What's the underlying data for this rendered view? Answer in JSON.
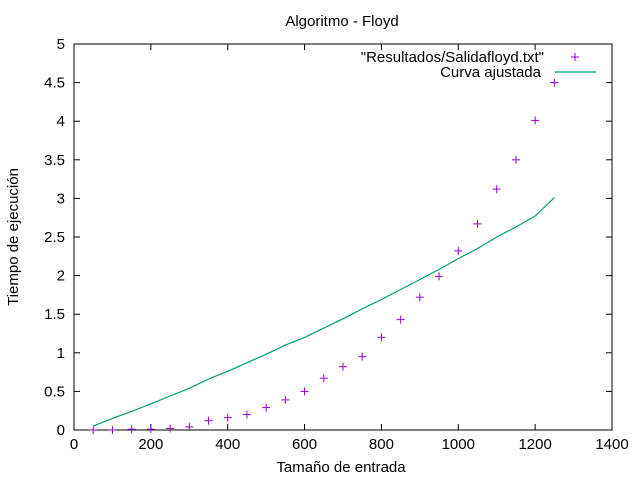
{
  "chart_data": {
    "type": "scatter",
    "title": "Algoritmo - Floyd",
    "xlabel": "Tamaño de entrada",
    "ylabel": "Tiempo de ejecución",
    "xlim": [
      0,
      1400
    ],
    "ylim": [
      0,
      5
    ],
    "x_ticks": [
      0,
      200,
      400,
      600,
      800,
      1000,
      1200,
      1400
    ],
    "y_ticks": [
      0,
      0.5,
      1,
      1.5,
      2,
      2.5,
      3,
      3.5,
      4,
      4.5,
      5
    ],
    "x_tick_labels": [
      "0",
      "200",
      "400",
      "600",
      "800",
      "1000",
      "1200",
      "1400"
    ],
    "y_tick_labels": [
      "0",
      "0.5",
      "1",
      "1.5",
      "2",
      "2.5",
      "3",
      "3.5",
      "4",
      "4.5",
      "5"
    ],
    "grid": false,
    "legend_position": "top-right",
    "series": [
      {
        "name": "\"Resultados/Salidafloyd.txt\"",
        "style": "points",
        "marker": "plus",
        "color": "#9400d3",
        "x": [
          50,
          100,
          150,
          200,
          250,
          300,
          350,
          400,
          450,
          500,
          550,
          600,
          650,
          700,
          750,
          800,
          850,
          900,
          950,
          1000,
          1050,
          1100,
          1150,
          1200,
          1250
        ],
        "y": [
          0.0,
          0.0,
          0.01,
          0.01,
          0.02,
          0.04,
          0.12,
          0.16,
          0.2,
          0.29,
          0.39,
          0.5,
          0.67,
          0.82,
          0.95,
          1.2,
          1.43,
          1.72,
          1.99,
          2.32,
          2.67,
          3.12,
          3.5,
          4.01,
          4.5
        ]
      },
      {
        "name": "Curva ajustada",
        "style": "line",
        "color": "#009e73",
        "x": [
          50,
          100,
          150,
          200,
          250,
          300,
          350,
          400,
          450,
          500,
          550,
          600,
          650,
          700,
          750,
          800,
          850,
          900,
          950,
          1000,
          1050,
          1100,
          1150,
          1200,
          1250
        ],
        "y": [
          0.05,
          0.15,
          0.24,
          0.34,
          0.44,
          0.54,
          0.66,
          0.76,
          0.87,
          0.98,
          1.1,
          1.2,
          1.32,
          1.44,
          1.57,
          1.69,
          1.82,
          1.95,
          2.08,
          2.22,
          2.35,
          2.5,
          2.63,
          2.77,
          3.01
        ]
      }
    ]
  }
}
